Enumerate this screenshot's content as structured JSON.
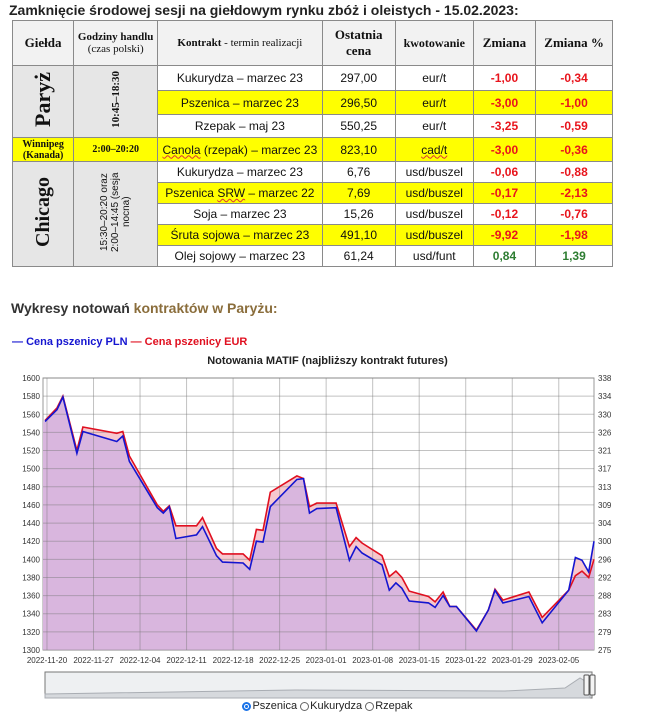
{
  "heading": "Zamknięcie środowej sesji na giełdowym rynku zbóż i oleistych - 15.02.2023:",
  "table": {
    "headers": {
      "exchange": "Giełda",
      "hours": "Godziny handlu",
      "hours_sub": "(czas polski)",
      "contract": "Kontrakt",
      "contract_sub": " - termin realizacji",
      "price1": "Ostatnia",
      "price2": "cena",
      "quote": "kwotowanie",
      "change": "Zmiana",
      "change_pct": "Zmiana %"
    },
    "groups": {
      "paris": {
        "name": "Paryż",
        "hours": "10:45–18:30"
      },
      "winnipeg": {
        "name": "Winnipeg",
        "name2": "(Kanada)",
        "hours": "2:00–20:20"
      },
      "chicago": {
        "name": "Chicago",
        "hours": "15:30–20:20 oraz 2:00–14:45 (sesja nocna)"
      }
    },
    "rows": [
      {
        "contract": "Kukurydza – marzec 23",
        "price": "297,00",
        "unit": "eur/t",
        "change": "-1,00",
        "pct": "-0,34"
      },
      {
        "contract": "Pszenica – marzec 23",
        "price": "296,50",
        "unit": "eur/t",
        "change": "-3,00",
        "pct": "-1,00"
      },
      {
        "contract": "Rzepak – maj 23",
        "price": "550,25",
        "unit": "eur/t",
        "change": "-3,25",
        "pct": "-0,59"
      },
      {
        "contract_a": "Canola",
        "contract": " (rzepak) – marzec 23",
        "price": "823,10",
        "unit": "cad/t",
        "change": "-3,00",
        "pct": "-0,36"
      },
      {
        "contract": "Kukurydza – marzec 23",
        "price": "6,76",
        "unit": "usd/buszel",
        "change": "-0,06",
        "pct": "-0,88"
      },
      {
        "contract_pre": "Pszenica ",
        "contract_a": "SRW",
        "contract": " – marzec 22",
        "price": "7,69",
        "unit": "usd/buszel",
        "change": "-0,17",
        "pct": "-2,13"
      },
      {
        "contract": "Soja – marzec 23",
        "price": "15,26",
        "unit": "usd/buszel",
        "change": "-0,12",
        "pct": "-0,76"
      },
      {
        "contract": "Śruta sojowa – marzec 23",
        "price": "491,10",
        "unit": "usd/buszel",
        "change": "-9,92",
        "pct": "-1,98"
      },
      {
        "contract": "Olej sojowy – marzec 23",
        "price": "61,24",
        "unit": "usd/funt",
        "change": "0,84",
        "pct": "1,39"
      }
    ]
  },
  "section": {
    "title_a": "Wykresy notowań ",
    "title_b": "kontraktów w Paryżu:"
  },
  "colors": {
    "pln": "#1515d0",
    "eur": "#e01020",
    "fill": "#d9b6de",
    "gap": "#f6c8cf",
    "highlight": "#ffff00"
  },
  "chart_data": {
    "type": "area",
    "title": "Notowania MATIF (najbliższy kontrakt futures)",
    "legend": [
      "Cena pszenicy PLN",
      "Cena pszenicy EUR"
    ],
    "legend_placement": "top-left",
    "x_unit": "days since 2022-11-20",
    "x_range": [
      -0.6,
      82.3
    ],
    "x_ticks": [
      "2022-11-20",
      "2022-11-27",
      "2022-12-04",
      "2022-12-11",
      "2022-12-18",
      "2022-12-25",
      "2023-01-01",
      "2023-01-08",
      "2023-01-15",
      "2023-01-22",
      "2023-01-29",
      "2023-02-05"
    ],
    "y_left_range": [
      1300,
      1600
    ],
    "y_left_ticks": [
      1600,
      1580,
      1560,
      1540,
      1520,
      1500,
      1480,
      1460,
      1440,
      1420,
      1400,
      1380,
      1360,
      1340,
      1320,
      1300
    ],
    "y_right_ticks": [
      338,
      334,
      330,
      326,
      321,
      317,
      313,
      309,
      304,
      300,
      296,
      292,
      288,
      283,
      279,
      275
    ],
    "x": [
      -0.3,
      1.5,
      2.4,
      4.5,
      5.4,
      10.5,
      11.4,
      12.4,
      16.6,
      17.5,
      18.4,
      19.4,
      22.5,
      23.4,
      25.5,
      26.4,
      29.5,
      30.5,
      31.5,
      32.5,
      33.6,
      37.6,
      38.6,
      39.5,
      40.6,
      43.5,
      45.5,
      46.5,
      47.4,
      50.4,
      51.5,
      52.5,
      53.4,
      54.5,
      57.4,
      58.4,
      59.6,
      60.6,
      61.6,
      64.6,
      66.4,
      67.4,
      68.6,
      72.5,
      74.5,
      78.5,
      79.5,
      80.5,
      81.5,
      82.3
    ],
    "series": [
      {
        "name": "Cena pszenicy PLN",
        "values": [
          1552,
          1565,
          1579,
          1517,
          1541,
          1530,
          1536,
          1508,
          1457,
          1451,
          1458,
          1423,
          1427,
          1436,
          1404,
          1397,
          1396,
          1389,
          1420,
          1419,
          1458,
          1488,
          1489,
          1451,
          1456,
          1457,
          1399,
          1414,
          1407,
          1394,
          1366,
          1374,
          1368,
          1354,
          1352,
          1347,
          1360,
          1348,
          1348,
          1321,
          1344,
          1366,
          1352,
          1359,
          1330,
          1366,
          1402,
          1399,
          1386,
          1420
        ]
      },
      {
        "name": "Cena pszenicy EUR",
        "values": [
          1553,
          1567,
          1580,
          1520,
          1546,
          1539,
          1541,
          1514,
          1460,
          1453,
          1459,
          1437,
          1437,
          1446,
          1412,
          1406,
          1406,
          1399,
          1433,
          1432,
          1474,
          1492,
          1489,
          1458,
          1462,
          1462,
          1414,
          1424,
          1418,
          1404,
          1381,
          1387,
          1380,
          1365,
          1359,
          1353,
          1364,
          1348,
          1348,
          1322,
          1344,
          1367,
          1355,
          1364,
          1336,
          1366,
          1382,
          1387,
          1380,
          1400
        ]
      }
    ]
  },
  "radios": [
    {
      "label": "Pszenica",
      "checked": true
    },
    {
      "label": "Kukurydza",
      "checked": false
    },
    {
      "label": "Rzepak",
      "checked": false
    }
  ]
}
